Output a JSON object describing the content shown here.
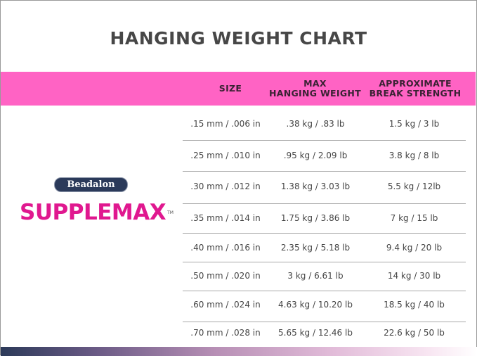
{
  "title": "HANGING WEIGHT CHART",
  "brand": {
    "maker": "Beadalon",
    "product": "SUPPLEMAX",
    "trademark": "TM"
  },
  "colors": {
    "header_band": "#ff63c4",
    "brand_pink": "#e0188f",
    "maker_badge": "#2b3a5a"
  },
  "table": {
    "headers": [
      {
        "line1": "SIZE",
        "line2": ""
      },
      {
        "line1": "MAX",
        "line2": "HANGING WEIGHT"
      },
      {
        "line1": "APPROXIMATE",
        "line2": "BREAK STRENGTH"
      }
    ],
    "rows": [
      [
        ".15 mm / .006 in",
        ".38 kg / .83 lb",
        "1.5 kg / 3 lb"
      ],
      [
        ".25 mm / .010 in",
        ".95 kg / 2.09 lb",
        "3.8 kg / 8 lb"
      ],
      [
        ".30 mm / .012 in",
        "1.38 kg / 3.03 lb",
        "5.5 kg / 12lb"
      ],
      [
        ".35 mm / .014 in",
        "1.75 kg / 3.86 lb",
        "7 kg / 15 lb"
      ],
      [
        ".40 mm / .016 in",
        "2.35 kg / 5.18 lb",
        "9.4 kg / 20 lb"
      ],
      [
        ".50 mm / .020 in",
        "3 kg / 6.61 lb",
        "14 kg / 30 lb"
      ],
      [
        ".60 mm / .024 in",
        "4.63 kg / 10.20 lb",
        "18.5 kg / 40 lb"
      ],
      [
        ".70 mm / .028 in",
        "5.65 kg / 12.46 lb",
        "22.6 kg / 50 lb"
      ]
    ]
  }
}
